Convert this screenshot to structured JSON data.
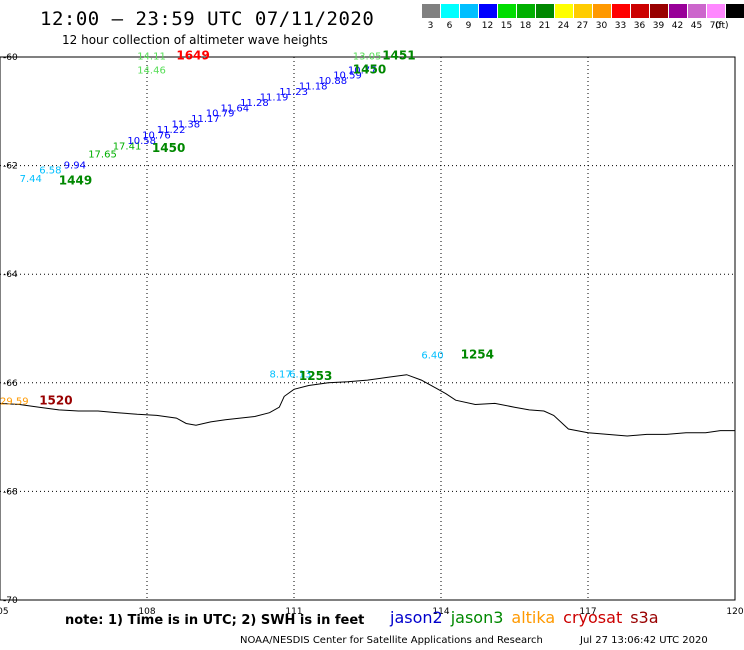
{
  "header": {
    "title": "12:00 – 23:59 UTC 07/11/2020",
    "subtitle": "12 hour collection of altimeter wave heights"
  },
  "legend": {
    "unit": "(ft)",
    "colors": [
      "#808080",
      "#00ffff",
      "#00bfff",
      "#0000ff",
      "#00dd00",
      "#00b000",
      "#008800",
      "#ffff00",
      "#ffcc00",
      "#ff9900",
      "#ff0000",
      "#cc0000",
      "#990000",
      "#990099",
      "#cc66cc",
      "#ff88ff",
      "#000000"
    ],
    "labels": [
      "3",
      "6",
      "9",
      "12",
      "15",
      "18",
      "21",
      "24",
      "27",
      "30",
      "33",
      "36",
      "39",
      "42",
      "45",
      "70"
    ]
  },
  "axes": {
    "lon_labels": [
      "105",
      "108",
      "111",
      "114",
      "117",
      "120"
    ],
    "lat_labels": [
      "-60",
      "-62",
      "-64",
      "-66",
      "-68",
      "-70"
    ]
  },
  "chart_data": {
    "type": "scatter",
    "x_range": [
      105,
      120
    ],
    "y_range": [
      -70,
      -60
    ],
    "grid": true,
    "points": [
      {
        "lon": 105.4,
        "lat": -62.3,
        "label": "7.44",
        "color": "#00bfff"
      },
      {
        "lon": 105.8,
        "lat": -62.15,
        "label": "6.58",
        "color": "#00bfff"
      },
      {
        "lon": 106.3,
        "lat": -62.05,
        "label": "9.94",
        "color": "#0000ff"
      },
      {
        "lon": 106.8,
        "lat": -61.85,
        "label": "17.65",
        "color": "#00b000"
      },
      {
        "lon": 107.3,
        "lat": -61.7,
        "label": "17.41",
        "color": "#00b000"
      },
      {
        "lon": 107.6,
        "lat": -61.6,
        "label": "10.58",
        "color": "#0000ff"
      },
      {
        "lon": 107.9,
        "lat": -61.5,
        "label": "10.76",
        "color": "#0000ff"
      },
      {
        "lon": 108.2,
        "lat": -61.4,
        "label": "11.22",
        "color": "#0000ff"
      },
      {
        "lon": 108.5,
        "lat": -61.3,
        "label": "11.38",
        "color": "#0000ff"
      },
      {
        "lon": 108.9,
        "lat": -61.2,
        "label": "11.17",
        "color": "#0000ff"
      },
      {
        "lon": 109.2,
        "lat": -61.1,
        "label": "10.79",
        "color": "#0000ff"
      },
      {
        "lon": 109.5,
        "lat": -61.0,
        "label": "11.64",
        "color": "#0000ff"
      },
      {
        "lon": 109.9,
        "lat": -60.9,
        "label": "11.28",
        "color": "#0000ff"
      },
      {
        "lon": 110.3,
        "lat": -60.8,
        "label": "11.19",
        "color": "#0000ff"
      },
      {
        "lon": 110.7,
        "lat": -60.7,
        "label": "11.23",
        "color": "#0000ff"
      },
      {
        "lon": 111.1,
        "lat": -60.6,
        "label": "11.18",
        "color": "#0000ff"
      },
      {
        "lon": 111.5,
        "lat": -60.5,
        "label": "10.88",
        "color": "#0000ff"
      },
      {
        "lon": 111.8,
        "lat": -60.4,
        "label": "10.59",
        "color": "#0000ff"
      },
      {
        "lon": 112.1,
        "lat": -60.3,
        "label": "10.77",
        "color": "#0000ff"
      },
      {
        "lon": 112.2,
        "lat": -60.05,
        "label": "13.05",
        "color": "#55dd55"
      },
      {
        "lon": 107.8,
        "lat": -60.05,
        "label": "14.11",
        "color": "#55dd55"
      },
      {
        "lon": 107.8,
        "lat": -60.3,
        "label": "14.46",
        "color": "#55dd55"
      },
      {
        "lon": 110.5,
        "lat": -65.9,
        "label": "8.17",
        "color": "#00bfff"
      },
      {
        "lon": 110.9,
        "lat": -65.9,
        "label": "6.13",
        "color": "#00bfff"
      },
      {
        "lon": 113.6,
        "lat": -65.55,
        "label": "6.40",
        "color": "#00bfff"
      },
      {
        "lon": 105.0,
        "lat": -66.4,
        "label": "29.59",
        "color": "#ff9900"
      }
    ],
    "time_labels": [
      {
        "lon": 106.2,
        "lat": -62.35,
        "label": "1449",
        "color": "#008800"
      },
      {
        "lon": 108.1,
        "lat": -61.75,
        "label": "1450",
        "color": "#008800"
      },
      {
        "lon": 112.2,
        "lat": -60.3,
        "label": "1450",
        "color": "#008800"
      },
      {
        "lon": 112.8,
        "lat": -60.05,
        "label": "1451",
        "color": "#008800"
      },
      {
        "lon": 108.6,
        "lat": -60.05,
        "label": "1649",
        "color": "#ff0000"
      },
      {
        "lon": 111.1,
        "lat": -65.95,
        "label": "1253",
        "color": "#008800"
      },
      {
        "lon": 114.4,
        "lat": -65.55,
        "label": "1254",
        "color": "#008800"
      },
      {
        "lon": 105.8,
        "lat": -66.4,
        "label": "1520",
        "color": "#990000"
      }
    ],
    "coastline": [
      [
        105.0,
        -66.38
      ],
      [
        105.4,
        -66.4
      ],
      [
        105.8,
        -66.45
      ],
      [
        106.2,
        -66.5
      ],
      [
        106.6,
        -66.52
      ],
      [
        107.0,
        -66.52
      ],
      [
        107.4,
        -66.55
      ],
      [
        107.8,
        -66.58
      ],
      [
        108.2,
        -66.6
      ],
      [
        108.6,
        -66.65
      ],
      [
        108.8,
        -66.75
      ],
      [
        109.0,
        -66.78
      ],
      [
        109.3,
        -66.72
      ],
      [
        109.6,
        -66.68
      ],
      [
        109.9,
        -66.65
      ],
      [
        110.2,
        -66.62
      ],
      [
        110.5,
        -66.55
      ],
      [
        110.7,
        -66.45
      ],
      [
        110.8,
        -66.25
      ],
      [
        111.0,
        -66.12
      ],
      [
        111.3,
        -66.05
      ],
      [
        111.7,
        -66.0
      ],
      [
        112.1,
        -65.98
      ],
      [
        112.5,
        -65.95
      ],
      [
        112.9,
        -65.9
      ],
      [
        113.3,
        -65.85
      ],
      [
        113.6,
        -65.95
      ],
      [
        113.9,
        -66.1
      ],
      [
        114.1,
        -66.2
      ],
      [
        114.3,
        -66.32
      ],
      [
        114.7,
        -66.4
      ],
      [
        115.1,
        -66.38
      ],
      [
        115.5,
        -66.45
      ],
      [
        115.8,
        -66.5
      ],
      [
        116.1,
        -66.52
      ],
      [
        116.3,
        -66.6
      ],
      [
        116.6,
        -66.85
      ],
      [
        117.0,
        -66.92
      ],
      [
        117.4,
        -66.95
      ],
      [
        117.8,
        -66.98
      ],
      [
        118.2,
        -66.95
      ],
      [
        118.6,
        -66.95
      ],
      [
        119.0,
        -66.92
      ],
      [
        119.4,
        -66.92
      ],
      [
        119.7,
        -66.88
      ],
      [
        120.0,
        -66.88
      ]
    ]
  },
  "footer": {
    "note": "note: 1) Time is in UTC; 2) SWH is in feet",
    "satellites": [
      {
        "name": "jason2",
        "color": "#0000cc"
      },
      {
        "name": "jason3",
        "color": "#008800"
      },
      {
        "name": "altika",
        "color": "#ff9900"
      },
      {
        "name": "cryosat",
        "color": "#cc0000"
      },
      {
        "name": "s3a",
        "color": "#990000"
      }
    ],
    "credit": "NOAA/NESDIS Center for Satellite Applications and Research",
    "timestamp": "Jul 27 13:06:42 UTC 2020"
  }
}
